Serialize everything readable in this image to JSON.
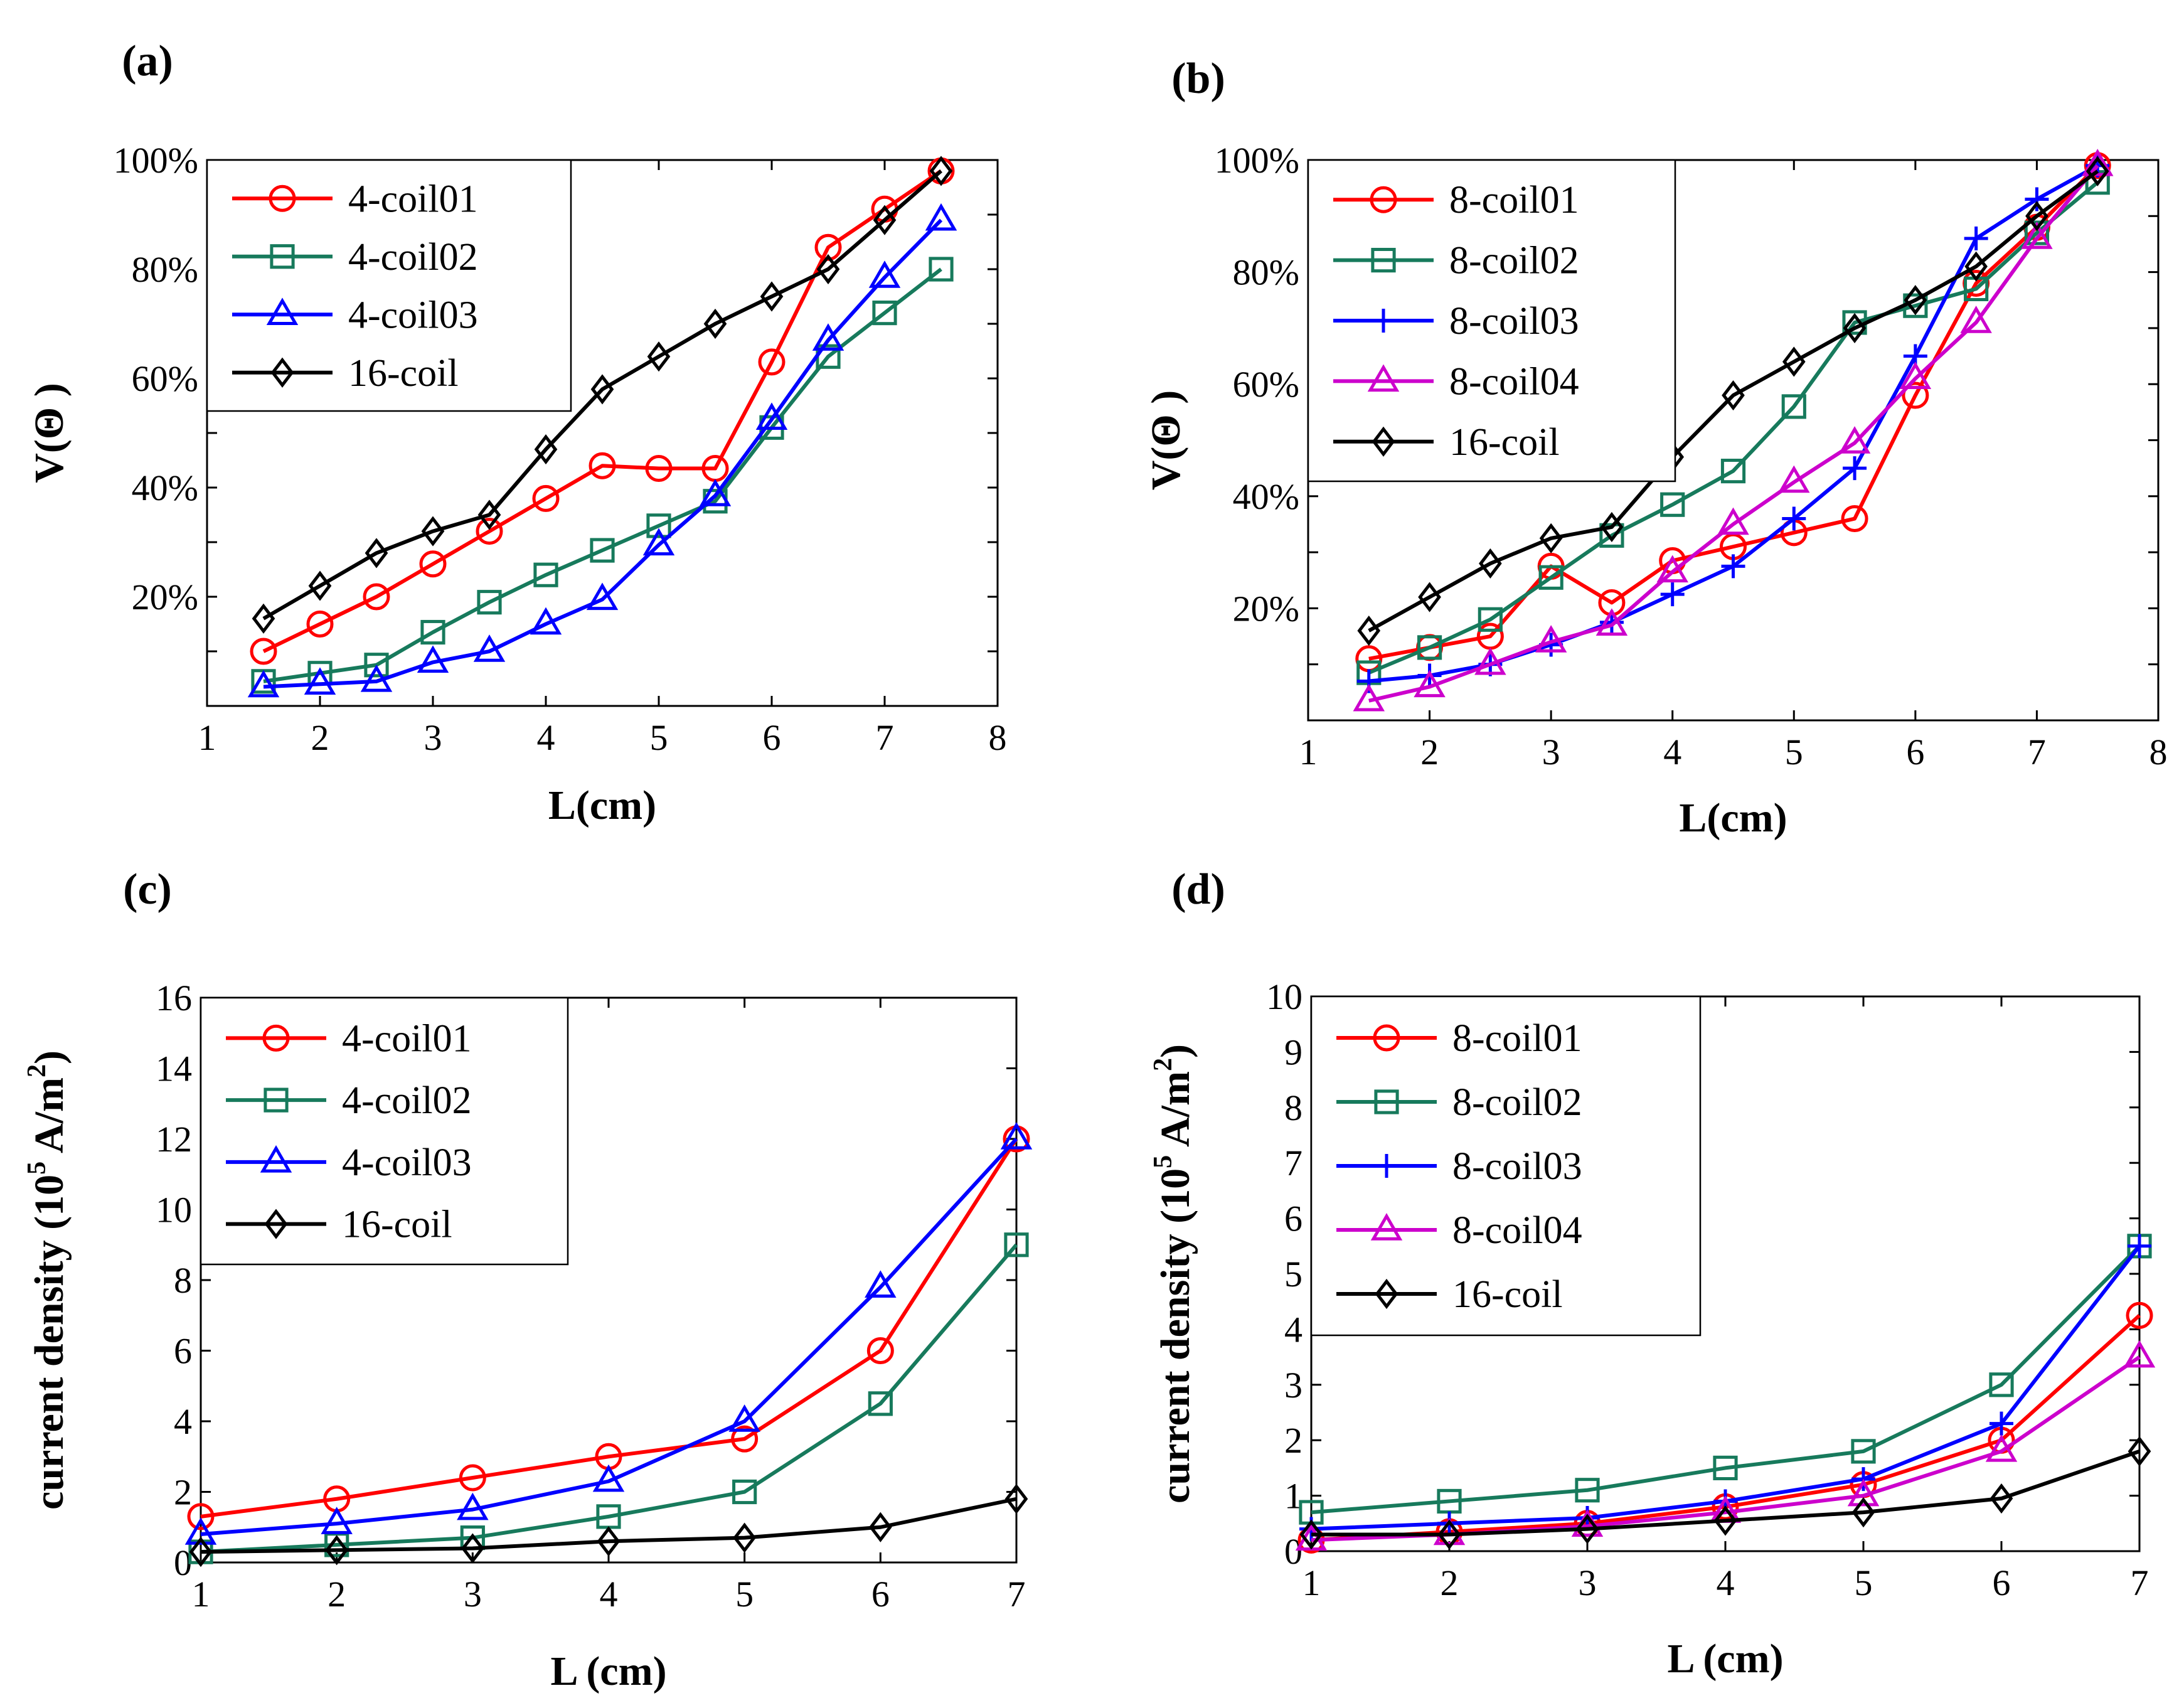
{
  "chart_data": [
    {
      "type": "line",
      "panel_label": "(a)",
      "xlabel": "L(cm)",
      "ylabel": "V(Θ )",
      "xlim": [
        1,
        8
      ],
      "ylim": [
        0,
        100
      ],
      "xticks": [
        1,
        2,
        3,
        4,
        5,
        6,
        7,
        8
      ],
      "xtick_labels": [
        "1",
        "2",
        "3",
        "4",
        "5",
        "6",
        "7",
        "8"
      ],
      "yticks": [
        20,
        40,
        60,
        80,
        100
      ],
      "ytick_labels": [
        "20%",
        "40%",
        "60%",
        "80%",
        "100%"
      ],
      "minor_yticks": [
        10,
        30,
        50,
        70,
        90
      ],
      "legend_position": "top-left",
      "x": [
        1.5,
        2,
        2.5,
        3,
        3.5,
        4,
        4.5,
        5,
        5.5,
        6,
        6.5,
        7,
        7.5
      ],
      "series": [
        {
          "name": "4-coil01",
          "color": "#ff0000",
          "marker": "circle",
          "values": [
            10,
            15,
            20,
            26,
            32,
            38,
            44,
            43.5,
            43.5,
            63,
            84,
            91,
            98
          ]
        },
        {
          "name": "4-coil02",
          "color": "#177a5c",
          "marker": "square",
          "values": [
            4.5,
            6,
            7.5,
            13.5,
            19,
            24,
            28.5,
            33,
            37.5,
            51,
            64,
            72,
            80
          ]
        },
        {
          "name": "4-coil03",
          "color": "#0000ff",
          "marker": "triangle",
          "values": [
            3.5,
            4,
            4.5,
            8,
            10,
            15,
            19.5,
            29.5,
            38.5,
            52.5,
            67,
            78.5,
            89
          ]
        },
        {
          "name": "16-coil",
          "color": "#000000",
          "marker": "diamond",
          "values": [
            16,
            22,
            28,
            32,
            35,
            47,
            58,
            64,
            70,
            75,
            80,
            89,
            98
          ]
        }
      ]
    },
    {
      "type": "line",
      "panel_label": "(b)",
      "xlabel": "L(cm)",
      "ylabel": "V(Θ )",
      "xlim": [
        1,
        8
      ],
      "ylim": [
        0,
        100
      ],
      "xticks": [
        1,
        2,
        3,
        4,
        5,
        6,
        7,
        8
      ],
      "xtick_labels": [
        "1",
        "2",
        "3",
        "4",
        "5",
        "6",
        "7",
        "8"
      ],
      "yticks": [
        20,
        40,
        60,
        80,
        100
      ],
      "ytick_labels": [
        "20%",
        "40%",
        "60%",
        "80%",
        "100%"
      ],
      "minor_yticks": [
        10,
        30,
        50,
        70,
        90
      ],
      "legend_position": "top-left",
      "x": [
        1.5,
        2,
        2.5,
        3,
        3.5,
        4,
        4.5,
        5,
        5.5,
        6,
        6.5,
        7,
        7.5
      ],
      "series": [
        {
          "name": "8-coil01",
          "color": "#ff0000",
          "marker": "circle",
          "values": [
            11,
            13,
            15,
            27.5,
            21,
            28.5,
            31,
            33.5,
            36,
            58,
            78,
            88,
            99
          ]
        },
        {
          "name": "8-coil02",
          "color": "#177a5c",
          "marker": "square",
          "values": [
            8.5,
            13,
            18,
            25.5,
            33,
            38.5,
            44.5,
            56,
            71,
            74,
            77,
            87,
            96
          ]
        },
        {
          "name": "8-coil03",
          "color": "#0000ff",
          "marker": "plus",
          "values": [
            7,
            8,
            10,
            13.5,
            17.5,
            22.5,
            27.5,
            36,
            45,
            65,
            86,
            93,
            99
          ]
        },
        {
          "name": "8-coil04",
          "color": "#cc00cc",
          "marker": "triangle",
          "values": [
            3.5,
            6,
            10,
            14,
            17,
            26.5,
            35,
            42.5,
            49.5,
            61,
            71,
            86,
            99
          ]
        },
        {
          "name": "16-coil",
          "color": "#000000",
          "marker": "diamond",
          "values": [
            16,
            22,
            28,
            32.5,
            34.5,
            47,
            58,
            64,
            70,
            75,
            81,
            90,
            98
          ]
        }
      ]
    },
    {
      "type": "line",
      "panel_label": "(c)",
      "xlabel": "L (cm)",
      "ylabel": "current density (10",
      "ylabel_sup": "5",
      "ylabel_tail": " A/m",
      "ylabel_sup2": "2",
      "ylabel_end": ")",
      "xlim": [
        1,
        7
      ],
      "ylim": [
        0,
        16
      ],
      "xticks": [
        1,
        2,
        3,
        4,
        5,
        6,
        7
      ],
      "xtick_labels": [
        "1",
        "2",
        "3",
        "4",
        "5",
        "6",
        "7"
      ],
      "yticks": [
        0,
        2,
        4,
        6,
        8,
        10,
        12,
        14,
        16
      ],
      "ytick_labels": [
        "0",
        "2",
        "4",
        "6",
        "8",
        "10",
        "12",
        "14",
        "16"
      ],
      "legend_position": "top-left",
      "x": [
        1,
        2,
        3,
        4,
        5,
        6,
        7
      ],
      "series": [
        {
          "name": "4-coil01",
          "color": "#ff0000",
          "marker": "circle",
          "values": [
            1.3,
            1.8,
            2.4,
            3.0,
            3.5,
            6.0,
            12.0
          ]
        },
        {
          "name": "4-coil02",
          "color": "#177a5c",
          "marker": "square",
          "values": [
            0.3,
            0.5,
            0.7,
            1.3,
            2.0,
            4.5,
            9.0
          ]
        },
        {
          "name": "4-coil03",
          "color": "#0000ff",
          "marker": "triangle",
          "values": [
            0.8,
            1.1,
            1.5,
            2.3,
            4.0,
            7.8,
            12.0
          ]
        },
        {
          "name": "16-coil",
          "color": "#000000",
          "marker": "diamond",
          "values": [
            0.3,
            0.35,
            0.4,
            0.6,
            0.7,
            1.0,
            1.8
          ]
        }
      ]
    },
    {
      "type": "line",
      "panel_label": "(d)",
      "xlabel": "L (cm)",
      "ylabel": "current density (10",
      "ylabel_sup": "5",
      "ylabel_tail": " A/m",
      "ylabel_sup2": "2",
      "ylabel_end": ")",
      "xlim": [
        1,
        7
      ],
      "ylim": [
        0,
        10
      ],
      "xticks": [
        1,
        2,
        3,
        4,
        5,
        6,
        7
      ],
      "xtick_labels": [
        "1",
        "2",
        "3",
        "4",
        "5",
        "6",
        "7"
      ],
      "yticks": [
        0,
        1,
        2,
        3,
        4,
        5,
        6,
        7,
        8,
        9,
        10
      ],
      "ytick_labels": [
        "0",
        "1",
        "2",
        "3",
        "4",
        "5",
        "6",
        "7",
        "8",
        "9",
        "10"
      ],
      "legend_position": "top-left",
      "x": [
        1,
        2,
        3,
        4,
        5,
        6,
        7
      ],
      "series": [
        {
          "name": "8-coil01",
          "color": "#ff0000",
          "marker": "circle",
          "values": [
            0.2,
            0.35,
            0.5,
            0.8,
            1.2,
            2.0,
            4.25
          ]
        },
        {
          "name": "8-coil02",
          "color": "#177a5c",
          "marker": "square",
          "values": [
            0.7,
            0.9,
            1.1,
            1.5,
            1.8,
            3.0,
            5.5
          ]
        },
        {
          "name": "8-coil03",
          "color": "#0000ff",
          "marker": "plus",
          "values": [
            0.4,
            0.5,
            0.6,
            0.9,
            1.3,
            2.3,
            5.5
          ]
        },
        {
          "name": "8-coil04",
          "color": "#cc00cc",
          "marker": "triangle",
          "values": [
            0.2,
            0.3,
            0.45,
            0.7,
            1.0,
            1.8,
            3.5
          ]
        },
        {
          "name": "16-coil",
          "color": "#000000",
          "marker": "diamond",
          "values": [
            0.3,
            0.3,
            0.4,
            0.55,
            0.7,
            0.95,
            1.8
          ]
        }
      ]
    }
  ]
}
